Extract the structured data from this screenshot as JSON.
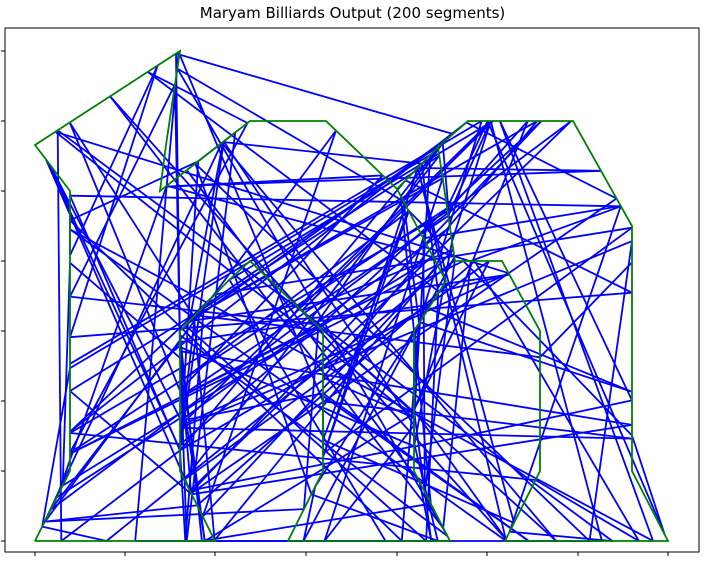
{
  "chart_data": {
    "type": "line",
    "title": "Maryam Billiards Output  (200 segments)",
    "xlabel": "",
    "ylabel": "",
    "xlim": [
      -1,
      22
    ],
    "ylim": [
      -0.2,
      14.5
    ],
    "xticks": [
      0,
      3,
      6,
      9,
      12,
      15,
      18,
      21
    ],
    "yticks": [
      0,
      2,
      4,
      6,
      8,
      10,
      12,
      14
    ],
    "tick_labels_visible": false,
    "grid": false,
    "legend": "none",
    "series": [
      {
        "role": "boundary",
        "color": "#008000",
        "x": [
          0,
          1.2,
          1.2,
          0,
          4.8,
          4.3,
          4.3,
          7.2,
          9.7,
          12,
          12.6,
          14,
          15,
          16,
          17.3,
          18,
          20,
          19.8,
          19.8,
          18.2,
          16.7,
          15.2,
          14.7,
          12.5,
          12.5,
          10.5,
          9.3,
          7.0,
          6.3,
          6.0,
          6.0,
          4.3,
          4.3,
          0.3,
          0.0,
          0,
          0
        ],
        "y": [
          0,
          2,
          10.4,
          11.9,
          12.8,
          11.0,
          10.8,
          12.2,
          12.2,
          10.5,
          10.5,
          12.2,
          12.2,
          12.2,
          12.2,
          12.2,
          12.2,
          10.2,
          2.0,
          0,
          0,
          0,
          0,
          0,
          0,
          0,
          0,
          0,
          0,
          0,
          2.0,
          6.0,
          0,
          0,
          0,
          0,
          0
        ]
      },
      {
        "role": "path",
        "color": "#0000ff",
        "segments": 200
      }
    ]
  }
}
